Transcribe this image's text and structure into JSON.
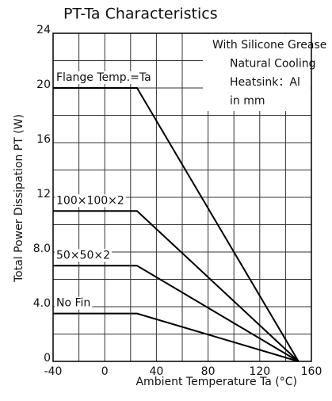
{
  "chart_data": {
    "type": "line",
    "title": "PT-Ta Characteristics",
    "x_label": "Ambient Temperature Ta (°C)",
    "y_label": "Total Power Dissipation PT (W)",
    "annotations": [
      "With Silicone Grease",
      "Natural Cooling",
      "Heatsink：Al",
      "in mm"
    ],
    "series": [
      {
        "name": "Flange Temp.=Ta",
        "color": "#000000",
        "x": [
          -40,
          25,
          150
        ],
        "values": [
          20,
          20,
          0
        ]
      },
      {
        "name": "100×100×2",
        "color": "#000000",
        "x": [
          -40,
          25,
          150
        ],
        "values": [
          11,
          11,
          0
        ]
      },
      {
        "name": "50×50×2",
        "color": "#000000",
        "x": [
          -40,
          25,
          150
        ],
        "values": [
          7,
          7,
          0
        ]
      },
      {
        "name": "No Fin",
        "color": "#000000",
        "x": [
          -40,
          25,
          150
        ],
        "values": [
          3.5,
          3.5,
          0
        ]
      }
    ],
    "xlim": [
      -40,
      160
    ],
    "xticks": [
      -40,
      0,
      40,
      80,
      120,
      160
    ],
    "ylim": [
      0,
      24
    ],
    "yticks": [
      0,
      {
        "value": 4,
        "label": "4.0"
      },
      {
        "value": 8,
        "label": "8.0"
      },
      12,
      16,
      20,
      24
    ],
    "xgrid": [
      -20,
      20,
      60,
      100,
      140
    ],
    "ygrid": [
      2,
      6,
      10,
      14,
      18,
      22
    ],
    "grid": true
  }
}
